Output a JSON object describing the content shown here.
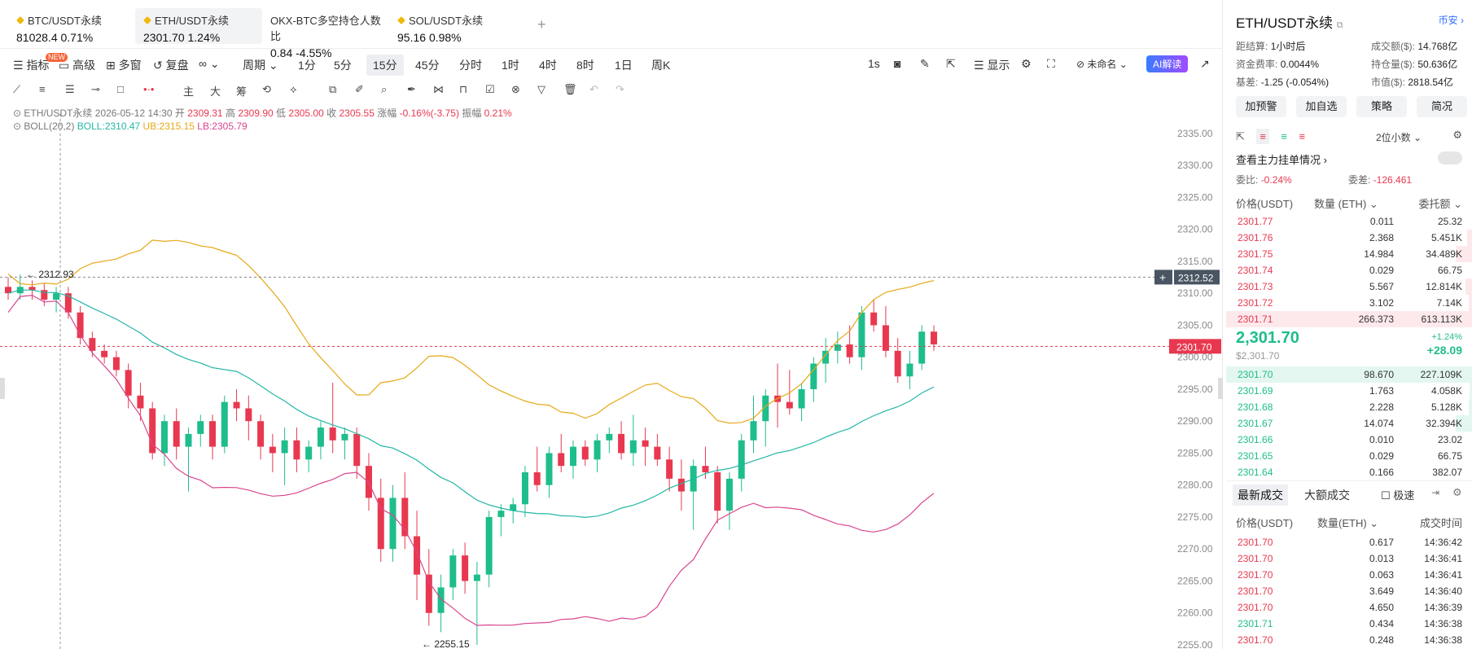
{
  "tickers": [
    {
      "name": "BTC/USDT永续",
      "price": "81028.4",
      "change": "0.71%"
    },
    {
      "name": "ETH/USDT永续",
      "price": "2301.70",
      "change": "1.24%"
    },
    {
      "name": "OKX-BTC多空持仓人数比",
      "price": "0.84",
      "change": "-4.55%"
    },
    {
      "name": "SOL/USDT永续",
      "price": "95.16",
      "change": "0.98%"
    }
  ],
  "toolbar": {
    "indicators": "指标",
    "advanced": "高级",
    "new_badge": "NEW",
    "multi_window": "多窗",
    "replay": "复盘",
    "period": "周期",
    "intervals": [
      "1分",
      "5分",
      "15分",
      "45分",
      "分时",
      "1时",
      "4时",
      "8时",
      "1日",
      "周K"
    ],
    "active_interval": "15分",
    "sec": "1s",
    "display": "显示",
    "unnamed": "未命名",
    "ai": "AI解读"
  },
  "drawing_tools": {
    "big": "大",
    "kai": "主",
    "chou": "筹"
  },
  "chart_info": {
    "symbol": "ETH/USDT永续",
    "datetime": "2026-05-12 14:30",
    "open_label": "开",
    "open": "2309.31",
    "high_label": "高",
    "high": "2309.90",
    "low_label": "低",
    "low": "2305.00",
    "close_label": "收",
    "close": "2305.55",
    "chg_label": "涨幅",
    "chg": "-0.16%(-3.75)",
    "amp_label": "振幅",
    "amp": "0.21%",
    "boll_name": "BOLL(20,2)",
    "boll": "BOLL:2310.47",
    "ub": "UB:2315.15",
    "lb": "LB:2305.79"
  },
  "chart_data": {
    "type": "candlestick",
    "y_ticks": [
      "2335.00",
      "2330.00",
      "2325.00",
      "2320.00",
      "2315.00",
      "2310.00",
      "2305.00",
      "2300.00",
      "2295.00",
      "2290.00",
      "2285.00",
      "2280.00",
      "2275.00",
      "2270.00",
      "2265.00",
      "2260.00",
      "2255.00"
    ],
    "ylim": [
      2255,
      2336
    ],
    "current_price": "2301.70",
    "crosshair_price": "2312.52",
    "high_marker": "2312.93",
    "low_marker": "2255.15",
    "ohlc": [
      [
        2311,
        2312.5,
        2309,
        2310
      ],
      [
        2310,
        2312.9,
        2309,
        2311
      ],
      [
        2311,
        2312,
        2309,
        2310.5
      ],
      [
        2310.5,
        2311.5,
        2308,
        2309
      ],
      [
        2309,
        2311,
        2307,
        2310
      ],
      [
        2310,
        2311,
        2306,
        2307
      ],
      [
        2307,
        2308,
        2302,
        2303
      ],
      [
        2303,
        2304,
        2300,
        2301
      ],
      [
        2301,
        2302,
        2299,
        2300
      ],
      [
        2300,
        2301,
        2297,
        2298
      ],
      [
        2298,
        2299,
        2292,
        2294
      ],
      [
        2294,
        2296,
        2290,
        2292
      ],
      [
        2292,
        2293,
        2284,
        2285
      ],
      [
        2285,
        2291,
        2283,
        2290
      ],
      [
        2290,
        2292,
        2284,
        2286
      ],
      [
        2286,
        2289,
        2279,
        2288
      ],
      [
        2288,
        2291,
        2286,
        2290
      ],
      [
        2290,
        2291,
        2284,
        2286
      ],
      [
        2286,
        2294,
        2285,
        2293
      ],
      [
        2293,
        2295,
        2290,
        2292
      ],
      [
        2292,
        2294,
        2287,
        2290
      ],
      [
        2290,
        2291,
        2284,
        2286
      ],
      [
        2286,
        2288,
        2282,
        2285
      ],
      [
        2285,
        2289,
        2280,
        2287
      ],
      [
        2287,
        2289,
        2282,
        2284
      ],
      [
        2284,
        2287,
        2282,
        2286
      ],
      [
        2286,
        2290,
        2284,
        2289
      ],
      [
        2289,
        2296,
        2285,
        2287
      ],
      [
        2287,
        2289,
        2284,
        2288
      ],
      [
        2288,
        2289,
        2281,
        2283
      ],
      [
        2283,
        2285,
        2276,
        2278
      ],
      [
        2278,
        2281,
        2268,
        2270
      ],
      [
        2270,
        2280,
        2268,
        2278
      ],
      [
        2278,
        2282,
        2270,
        2272
      ],
      [
        2272,
        2276,
        2262,
        2266
      ],
      [
        2266,
        2270,
        2258,
        2260
      ],
      [
        2260,
        2266,
        2257,
        2264
      ],
      [
        2264,
        2270,
        2262,
        2269
      ],
      [
        2269,
        2271,
        2263,
        2265
      ],
      [
        2265,
        2268,
        2255,
        2266
      ],
      [
        2266,
        2276,
        2264,
        2275
      ],
      [
        2275,
        2277,
        2272,
        2276
      ],
      [
        2276,
        2278,
        2274,
        2277
      ],
      [
        2277,
        2283,
        2275,
        2282
      ],
      [
        2282,
        2286,
        2279,
        2280
      ],
      [
        2280,
        2286,
        2278,
        2285
      ],
      [
        2285,
        2288,
        2282,
        2283
      ],
      [
        2283,
        2287,
        2281,
        2286
      ],
      [
        2286,
        2287,
        2283,
        2284
      ],
      [
        2284,
        2288,
        2282,
        2287
      ],
      [
        2287,
        2289,
        2285,
        2288
      ],
      [
        2288,
        2290,
        2284,
        2285
      ],
      [
        2285,
        2291,
        2283,
        2287
      ],
      [
        2287,
        2289,
        2283,
        2286
      ],
      [
        2286,
        2288,
        2283,
        2284
      ],
      [
        2284,
        2286,
        2279,
        2281
      ],
      [
        2281,
        2284,
        2276,
        2279
      ],
      [
        2279,
        2284,
        2273,
        2283
      ],
      [
        2283,
        2286,
        2281,
        2282
      ],
      [
        2282,
        2283,
        2274,
        2276
      ],
      [
        2276,
        2282,
        2273,
        2281
      ],
      [
        2281,
        2288,
        2279,
        2287
      ],
      [
        2287,
        2294,
        2285,
        2290
      ],
      [
        2290,
        2295,
        2286,
        2294
      ],
      [
        2294,
        2299,
        2289,
        2293
      ],
      [
        2293,
        2298,
        2291,
        2292
      ],
      [
        2292,
        2296,
        2290,
        2295
      ],
      [
        2295,
        2300,
        2293,
        2299
      ],
      [
        2299,
        2303,
        2296,
        2301
      ],
      [
        2301,
        2304,
        2299,
        2302
      ],
      [
        2302,
        2305,
        2299,
        2300
      ],
      [
        2300,
        2308,
        2298,
        2307
      ],
      [
        2307,
        2309,
        2304,
        2305
      ],
      [
        2305,
        2308,
        2300,
        2301
      ],
      [
        2301,
        2303,
        2296,
        2297
      ],
      [
        2297,
        2301,
        2295,
        2299
      ],
      [
        2299,
        2305,
        2298,
        2304
      ],
      [
        2304,
        2305,
        2301,
        2302
      ]
    ]
  },
  "panel": {
    "title": "ETH/USDT永续",
    "link": "币安",
    "settle_label": "距结算:",
    "settle": "1小时后",
    "vol_label": "成交额($):",
    "vol": "14.768亿",
    "fund_label": "资金费率:",
    "fund": "0.0044%",
    "oi_label": "持仓量($):",
    "oi": "50.636亿",
    "basis_label": "基差:",
    "basis": "-1.25 (-0.054%)",
    "mcap_label": "市值($):",
    "mcap": "2818.54亿",
    "buttons": [
      "加预警",
      "加自选",
      "策略",
      "简况"
    ],
    "decimals": "2位小数",
    "main_orders": "查看主力挂单情况",
    "ratio_label": "委比:",
    "ratio": "-0.24%",
    "diff_label": "委差:",
    "diff": "-126.461",
    "ob_headers": [
      "价格(USDT)",
      "数量 (ETH)",
      "委托额"
    ],
    "asks": [
      [
        "2301.77",
        "0.011",
        "25.32"
      ],
      [
        "2301.76",
        "2.368",
        "5.451K"
      ],
      [
        "2301.75",
        "14.984",
        "34.489K"
      ],
      [
        "2301.74",
        "0.029",
        "66.75"
      ],
      [
        "2301.73",
        "5.567",
        "12.814K"
      ],
      [
        "2301.72",
        "3.102",
        "7.14K"
      ],
      [
        "2301.71",
        "266.373",
        "613.113K"
      ]
    ],
    "last": "2,301.70",
    "last_usd": "$2,301.70",
    "last_pct": "+1.24%",
    "last_chg": "+28.09",
    "bids": [
      [
        "2301.70",
        "98.670",
        "227.109K"
      ],
      [
        "2301.69",
        "1.763",
        "4.058K"
      ],
      [
        "2301.68",
        "2.228",
        "5.128K"
      ],
      [
        "2301.67",
        "14.074",
        "32.394K"
      ],
      [
        "2301.66",
        "0.010",
        "23.02"
      ],
      [
        "2301.65",
        "0.029",
        "66.75"
      ],
      [
        "2301.64",
        "0.166",
        "382.07"
      ]
    ],
    "tab_latest": "最新成交",
    "tab_large": "大额成交",
    "fast": "极速",
    "tr_headers": [
      "价格(USDT)",
      "数量(ETH)",
      "成交时间"
    ],
    "trades": [
      [
        "2301.70",
        "0.617",
        "14:36:42",
        "r"
      ],
      [
        "2301.70",
        "0.013",
        "14:36:41",
        "r"
      ],
      [
        "2301.70",
        "0.063",
        "14:36:41",
        "r"
      ],
      [
        "2301.70",
        "3.649",
        "14:36:40",
        "r"
      ],
      [
        "2301.70",
        "4.650",
        "14:36:39",
        "r"
      ],
      [
        "2301.71",
        "0.434",
        "14:36:38",
        "g"
      ],
      [
        "2301.70",
        "0.248",
        "14:36:38",
        "r"
      ]
    ]
  }
}
